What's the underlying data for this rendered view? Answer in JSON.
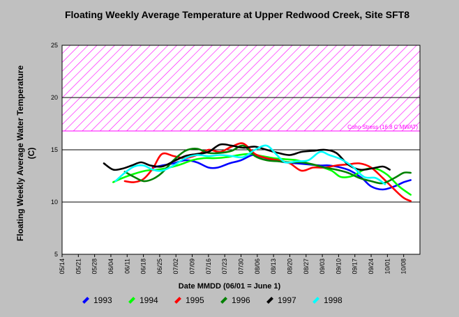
{
  "chart_data": {
    "type": "line",
    "title": "Floating Weekly Average Temperature at Upper Redwood Creek, Site SFT8",
    "xlabel": "Date MMDD (06/01 = June 1)",
    "ylabel": "Floating Weekly Average Water Temperature (C)",
    "ylim": [
      5,
      25
    ],
    "yticks": [
      5,
      10,
      15,
      20,
      25
    ],
    "xlim_day": [
      0,
      154
    ],
    "xticks": [
      "05/14",
      "05/21",
      "05/28",
      "06/04",
      "06/11",
      "06/18",
      "06/25",
      "07/02",
      "07/09",
      "07/16",
      "07/23",
      "07/30",
      "08/06",
      "08/13",
      "08/20",
      "08/27",
      "09/03",
      "09/10",
      "09/17",
      "09/24",
      "10/01",
      "10/08"
    ],
    "grid": "horizontal",
    "annotation": {
      "label": "Coho Stress (16.8 C MWAT)",
      "threshold": 16.8,
      "upper": 25,
      "color": "#ff00ff"
    },
    "series": [
      {
        "name": "1993",
        "color": "#0000ff",
        "x": [
          "06/22",
          "06/26",
          "07/01",
          "07/06",
          "07/11",
          "07/16",
          "07/20",
          "07/25",
          "07/30",
          "08/04",
          "08/08",
          "08/13",
          "08/18",
          "08/23",
          "08/28",
          "09/02",
          "09/06",
          "09/11",
          "09/15",
          "09/20",
          "09/24",
          "09/29",
          "10/04",
          "10/08",
          "10/11"
        ],
        "y": [
          13.3,
          13.5,
          13.7,
          14.0,
          13.8,
          13.3,
          13.3,
          13.7,
          14.0,
          14.5,
          14.3,
          14.0,
          13.8,
          13.7,
          13.6,
          13.5,
          13.5,
          13.3,
          13.0,
          12.3,
          11.5,
          11.2,
          11.5,
          11.9,
          12.1
        ]
      },
      {
        "name": "1994",
        "color": "#00ff00",
        "x": [
          "06/05",
          "06/09",
          "06/14",
          "06/19",
          "06/24",
          "06/29",
          "07/04",
          "07/09",
          "07/14",
          "07/19",
          "07/24",
          "07/29",
          "08/03",
          "08/08",
          "08/13",
          "08/18",
          "08/23",
          "08/28",
          "09/02",
          "09/07",
          "09/11",
          "09/16",
          "09/21",
          "09/26",
          "10/01",
          "10/06",
          "10/11"
        ],
        "y": [
          11.9,
          12.3,
          12.7,
          13.0,
          13.1,
          13.3,
          13.6,
          14.0,
          14.2,
          14.2,
          14.3,
          14.5,
          14.6,
          14.4,
          14.2,
          14.1,
          14.0,
          13.7,
          13.4,
          13.0,
          12.4,
          12.5,
          13.1,
          13.2,
          12.6,
          11.5,
          10.7
        ]
      },
      {
        "name": "1995",
        "color": "#ff0000",
        "x": [
          "06/10",
          "06/14",
          "06/18",
          "06/22",
          "06/26",
          "07/01",
          "07/06",
          "07/11",
          "07/16",
          "07/21",
          "07/26",
          "07/31",
          "08/05",
          "08/10",
          "08/15",
          "08/20",
          "08/25",
          "08/30",
          "09/04",
          "09/09",
          "09/14",
          "09/19",
          "09/24",
          "09/29",
          "10/04",
          "10/08",
          "10/11"
        ],
        "y": [
          12.0,
          11.9,
          12.2,
          13.2,
          14.6,
          14.4,
          14.2,
          14.5,
          15.0,
          14.8,
          15.3,
          15.6,
          14.6,
          14.2,
          14.0,
          13.7,
          13.0,
          13.3,
          13.3,
          13.5,
          13.6,
          13.7,
          13.3,
          12.3,
          11.2,
          10.4,
          10.1
        ]
      },
      {
        "name": "1996",
        "color": "#008000",
        "x": [
          "06/10",
          "06/14",
          "06/18",
          "06/22",
          "06/26",
          "07/01",
          "07/06",
          "07/11",
          "07/16",
          "07/21",
          "07/26",
          "07/31",
          "08/05",
          "08/10",
          "08/15",
          "08/20",
          "08/25",
          "08/30",
          "09/04",
          "09/09",
          "09/14",
          "09/19",
          "09/24",
          "09/29",
          "10/04",
          "10/08",
          "10/11"
        ],
        "y": [
          12.9,
          12.4,
          12.0,
          12.2,
          12.8,
          14.0,
          14.9,
          15.1,
          14.7,
          14.7,
          14.9,
          15.4,
          14.4,
          14.0,
          13.9,
          13.8,
          13.8,
          13.6,
          13.3,
          13.1,
          12.8,
          12.3,
          12.0,
          11.8,
          12.3,
          12.8,
          12.8
        ]
      },
      {
        "name": "1997",
        "color": "#000000",
        "x": [
          "06/01",
          "06/05",
          "06/09",
          "06/13",
          "06/17",
          "06/21",
          "06/26",
          "07/01",
          "07/06",
          "07/11",
          "07/16",
          "07/21",
          "07/26",
          "07/31",
          "08/05",
          "08/10",
          "08/15",
          "08/20",
          "08/25",
          "08/30",
          "09/04",
          "09/09",
          "09/14",
          "09/19",
          "09/24",
          "09/29",
          "10/02"
        ],
        "y": [
          13.7,
          13.1,
          13.2,
          13.5,
          13.8,
          13.5,
          13.4,
          13.9,
          14.4,
          14.6,
          14.8,
          15.5,
          15.4,
          15.2,
          15.3,
          15.0,
          14.7,
          14.5,
          14.8,
          14.9,
          15.0,
          14.7,
          13.6,
          13.1,
          13.2,
          13.4,
          13.1
        ]
      },
      {
        "name": "1998",
        "color": "#00ffff",
        "x": [
          "06/06",
          "06/10",
          "06/14",
          "06/18",
          "06/22",
          "06/26",
          "07/01",
          "07/06",
          "07/11",
          "07/16",
          "07/21",
          "07/26",
          "07/31",
          "08/05",
          "08/10",
          "08/14",
          "08/18",
          "08/23",
          "08/28",
          "09/02",
          "09/06",
          "09/11",
          "09/16",
          "09/21",
          "09/26",
          "09/30"
        ],
        "y": [
          12.0,
          12.8,
          13.4,
          13.5,
          13.1,
          13.0,
          13.5,
          14.2,
          14.5,
          14.4,
          14.5,
          14.4,
          14.3,
          15.0,
          15.4,
          14.6,
          13.8,
          13.9,
          14.0,
          14.8,
          14.5,
          14.1,
          13.4,
          12.4,
          12.3,
          11.7
        ]
      }
    ]
  }
}
